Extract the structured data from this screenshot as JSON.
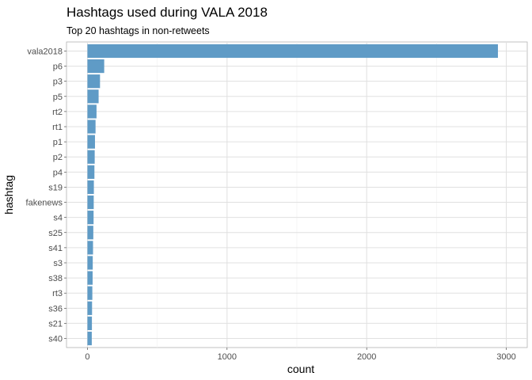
{
  "chart_data": {
    "type": "bar",
    "orientation": "horizontal",
    "title": "Hashtags used during VALA 2018",
    "subtitle": "Top 20 hashtags in non-retweets",
    "xlabel": "count",
    "ylabel": "hashtag",
    "xlim": [
      0,
      3000
    ],
    "xticks": [
      0,
      1000,
      2000,
      3000
    ],
    "grid": true,
    "legend": "none",
    "bar_color": "#5f9bc6",
    "categories": [
      "vala2018",
      "p6",
      "p3",
      "p5",
      "rt2",
      "rt1",
      "p1",
      "p2",
      "p4",
      "s19",
      "fakenews",
      "s4",
      "s25",
      "s41",
      "s3",
      "s38",
      "rt3",
      "s36",
      "s21",
      "s40"
    ],
    "values": [
      2940,
      120,
      90,
      80,
      65,
      58,
      54,
      52,
      50,
      46,
      45,
      44,
      42,
      40,
      38,
      37,
      35,
      33,
      32,
      31
    ]
  }
}
